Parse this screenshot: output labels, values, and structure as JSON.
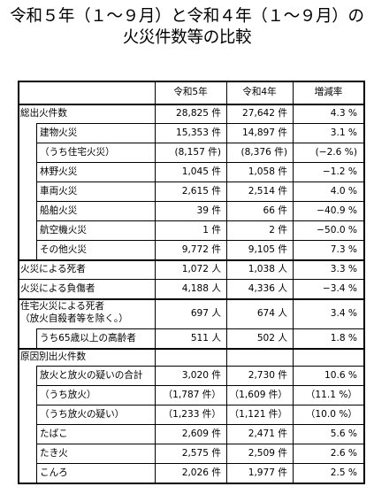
{
  "title": {
    "line1": "令和５年（１～９月）と令和４年（１～９月）の",
    "line2": "火災件数等の比較"
  },
  "header": {
    "col1": "令和5年",
    "col2": "令和4年",
    "col3": "増減率"
  },
  "rows": [
    {
      "label": "総出火件数",
      "indent": 0,
      "v5": "28,825 件",
      "v4": "27,642 件",
      "rate": "4.3 %"
    },
    {
      "label": "建物火災",
      "indent": 1,
      "v5": "15,353 件",
      "v4": "14,897 件",
      "rate": "3.1 %"
    },
    {
      "label": "（うち住宅火災）",
      "indent": 1,
      "v5": "(8,157 件)",
      "v4": "(8,376 件)",
      "rate": "(−2.6 %)"
    },
    {
      "label": "林野火災",
      "indent": 1,
      "v5": "1,045 件",
      "v4": "1,058 件",
      "rate": "−1.2 %"
    },
    {
      "label": "車両火災",
      "indent": 1,
      "v5": "2,615 件",
      "v4": "2,514 件",
      "rate": "4.0 %"
    },
    {
      "label": "船舶火災",
      "indent": 1,
      "v5": "39 件",
      "v4": "66 件",
      "rate": "−40.9 %"
    },
    {
      "label": "航空機火災",
      "indent": 1,
      "v5": "1 件",
      "v4": "2 件",
      "rate": "−50.0 %"
    },
    {
      "label": "その他火災",
      "indent": 1,
      "v5": "9,772 件",
      "v4": "9,105 件",
      "rate": "7.3 %"
    },
    {
      "label": "火災による死者",
      "indent": 0,
      "v5": "1,072 人",
      "v4": "1,038 人",
      "rate": "3.3 %"
    },
    {
      "label": "火災による負傷者",
      "indent": 0,
      "v5": "4,188 人",
      "v4": "4,336 人",
      "rate": "−3.4 %"
    },
    {
      "label": "住宅火災による死者",
      "label2": "（放火自殺者等を除く。）",
      "indent": 0,
      "v5": "697 人",
      "v4": "674 人",
      "rate": "3.4 %"
    },
    {
      "label": "うち65歳以上の高齢者",
      "indent": 1,
      "v5": "511 人",
      "v4": "502 人",
      "rate": "1.8 %"
    },
    {
      "label": "原因別出火件数",
      "indent": 0,
      "v5": "",
      "v4": "",
      "rate": ""
    },
    {
      "label": "放火と放火の疑いの合計",
      "indent": 1,
      "v5": "3,020 件",
      "v4": "2,730 件",
      "rate": "10.6 %"
    },
    {
      "label": "（うち放火）",
      "indent": 1,
      "v5": "（1,787 件）",
      "v4": "（1,609 件）",
      "rate": "（11.1 %）"
    },
    {
      "label": "（うち放火の疑い）",
      "indent": 1,
      "v5": "（1,233 件）",
      "v4": "（1,121 件）",
      "rate": "（10.0 %）"
    },
    {
      "label": "たばこ",
      "indent": 1,
      "v5": "2,609 件",
      "v4": "2,471 件",
      "rate": "5.6 %"
    },
    {
      "label": "たき火",
      "indent": 1,
      "v5": "2,575 件",
      "v4": "2,509 件",
      "rate": "2.6 %"
    },
    {
      "label": "こんろ",
      "indent": 1,
      "v5": "2,026 件",
      "v4": "1,977 件",
      "rate": "2.5 %"
    }
  ]
}
